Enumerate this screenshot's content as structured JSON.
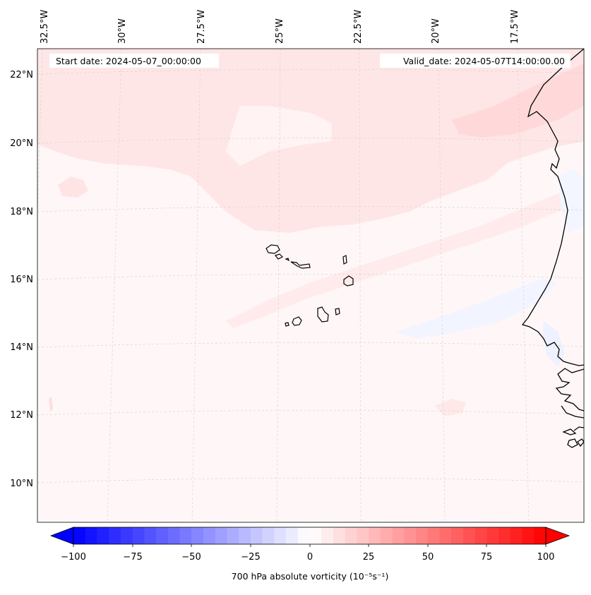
{
  "header": {
    "start_date": "Start date: 2024-05-07_00:00:00",
    "valid_date": "Valid_date: 2024-05-07T14:00:00.00"
  },
  "map": {
    "lon_labels": [
      "32.5°W",
      "30°W",
      "27.5°W",
      "25°W",
      "22.5°W",
      "20°W",
      "17.5°W"
    ],
    "lat_labels": [
      "22°N",
      "20°N",
      "18°N",
      "16°N",
      "14°N",
      "12°N",
      "10°N"
    ],
    "colors": {
      "background": "#fff7f7",
      "pos_light": "#ffe5e5",
      "pos_lighter": "#ffeded",
      "neg_light": "#f3f5ff",
      "coast": "#000000",
      "grid": "#cccccc"
    }
  },
  "colorbar": {
    "label": "700 hPa absolute vorticity (10⁻⁵s⁻¹)",
    "ticks": [
      "−100",
      "−75",
      "−50",
      "−25",
      "0",
      "25",
      "50",
      "75",
      "100"
    ],
    "min": -100,
    "max": 100,
    "levels": 40
  }
}
